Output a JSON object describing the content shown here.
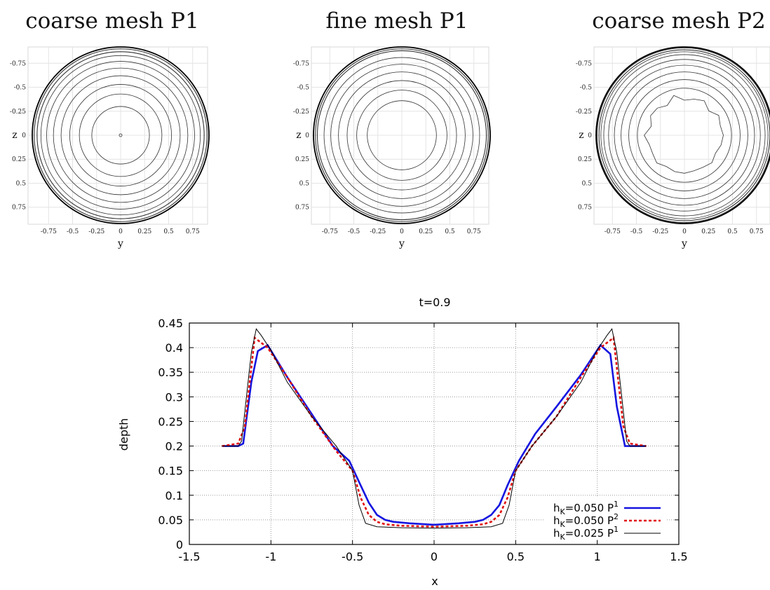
{
  "panels": [
    {
      "title": "coarse mesh P1",
      "xlabel": "y",
      "ylabel": "z",
      "ticks": [
        "-0.75",
        "-0.5",
        "-0.25",
        "0",
        "0.25",
        "0.5",
        "0.75"
      ],
      "contour_radii": [
        0.92,
        0.9,
        0.87,
        0.83,
        0.77,
        0.7,
        0.62,
        0.53,
        0.43,
        0.3,
        0.01
      ],
      "rough_inner": false
    },
    {
      "title": "fine mesh P1",
      "xlabel": "y",
      "ylabel": "z",
      "ticks": [
        "-0.75",
        "-0.5",
        "-0.25",
        "0",
        "0.25",
        "0.5",
        "0.75"
      ],
      "contour_radii": [
        0.92,
        0.9,
        0.88,
        0.81,
        0.74,
        0.66,
        0.57,
        0.47,
        0.36
      ],
      "rough_inner": false
    },
    {
      "title": "coarse mesh P2",
      "xlabel": "y",
      "ylabel": "z",
      "ticks": [
        "-0.75",
        "-0.5",
        "-0.25",
        "0",
        "0.25",
        "0.5",
        "0.75"
      ],
      "contour_radii": [
        0.92,
        0.91,
        0.89,
        0.87,
        0.84,
        0.79,
        0.73,
        0.66,
        0.58,
        0.49,
        0.39
      ],
      "rough_inner": true
    }
  ],
  "chart_data": {
    "type": "line",
    "title": "t=0.9",
    "xlabel": "x",
    "ylabel": "depth",
    "xlim": [
      -1.5,
      1.5
    ],
    "ylim": [
      0,
      0.45
    ],
    "xticks": [
      "-1.5",
      "-1",
      "-0.5",
      "0",
      "0.5",
      "1",
      "1.5"
    ],
    "yticks": [
      "0",
      "0.05",
      "0.1",
      "0.15",
      "0.2",
      "0.25",
      "0.3",
      "0.35",
      "0.4",
      "0.45"
    ],
    "grid": true,
    "legend_position": "bottom-right",
    "series": [
      {
        "name_main": "h",
        "name_sub": "K",
        "name_rest": "=0.050 P",
        "name_sup": "1",
        "color": "#1515e0",
        "style": "solid",
        "x": [
          -1.3,
          -1.2,
          -1.17,
          -1.12,
          -1.08,
          -1.02,
          -0.9,
          -0.75,
          -0.62,
          -0.52,
          -0.45,
          -0.4,
          -0.35,
          -0.3,
          -0.25,
          -0.15,
          0,
          0.15,
          0.25,
          0.3,
          0.35,
          0.4,
          0.45,
          0.52,
          0.62,
          0.75,
          0.9,
          1.02,
          1.08,
          1.12,
          1.17,
          1.2,
          1.3
        ],
        "y": [
          0.2,
          0.2,
          0.205,
          0.33,
          0.393,
          0.405,
          0.34,
          0.265,
          0.2,
          0.17,
          0.12,
          0.085,
          0.06,
          0.05,
          0.046,
          0.043,
          0.04,
          0.043,
          0.046,
          0.05,
          0.06,
          0.08,
          0.12,
          0.17,
          0.225,
          0.28,
          0.345,
          0.405,
          0.387,
          0.28,
          0.2,
          0.2,
          0.2
        ]
      },
      {
        "name_main": "h",
        "name_sub": "K",
        "name_rest": "=0.050 P",
        "name_sup": "2",
        "color": "#e01010",
        "style": "dashed",
        "x": [
          -1.3,
          -1.2,
          -1.16,
          -1.13,
          -1.1,
          -1.06,
          -1.02,
          -0.9,
          -0.75,
          -0.6,
          -0.5,
          -0.45,
          -0.4,
          -0.35,
          -0.3,
          -0.2,
          0,
          0.2,
          0.3,
          0.35,
          0.4,
          0.45,
          0.5,
          0.6,
          0.75,
          0.9,
          1.02,
          1.06,
          1.1,
          1.13,
          1.16,
          1.2,
          1.3
        ],
        "y": [
          0.2,
          0.205,
          0.24,
          0.33,
          0.42,
          0.41,
          0.4,
          0.34,
          0.26,
          0.19,
          0.15,
          0.095,
          0.06,
          0.046,
          0.041,
          0.038,
          0.036,
          0.038,
          0.041,
          0.046,
          0.06,
          0.095,
          0.15,
          0.2,
          0.26,
          0.34,
          0.4,
          0.41,
          0.42,
          0.33,
          0.24,
          0.205,
          0.2
        ]
      },
      {
        "name_main": "h",
        "name_sub": "K",
        "name_rest": "=0.025 P",
        "name_sup": "1",
        "color": "#000000",
        "style": "thin",
        "x": [
          -1.3,
          -1.2,
          -1.18,
          -1.15,
          -1.12,
          -1.09,
          -1.06,
          -1.0,
          -0.9,
          -0.75,
          -0.6,
          -0.5,
          -0.46,
          -0.42,
          -0.35,
          -0.2,
          0,
          0.2,
          0.35,
          0.42,
          0.46,
          0.5,
          0.6,
          0.75,
          0.9,
          1.0,
          1.06,
          1.09,
          1.12,
          1.15,
          1.18,
          1.2,
          1.3
        ],
        "y": [
          0.2,
          0.2,
          0.21,
          0.3,
          0.39,
          0.438,
          0.425,
          0.395,
          0.33,
          0.26,
          0.2,
          0.15,
          0.08,
          0.043,
          0.036,
          0.034,
          0.033,
          0.034,
          0.036,
          0.043,
          0.08,
          0.15,
          0.2,
          0.26,
          0.33,
          0.395,
          0.425,
          0.438,
          0.39,
          0.3,
          0.21,
          0.2,
          0.2
        ]
      }
    ]
  }
}
